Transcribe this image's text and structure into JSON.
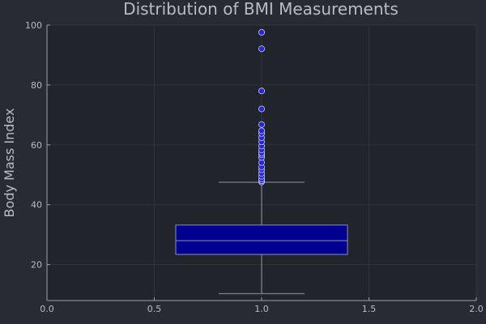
{
  "chart_data": {
    "type": "box",
    "title": "Distribution of BMI Measurements",
    "xlabel": "",
    "ylabel": "Body Mass Index",
    "xlim": [
      0,
      2
    ],
    "ylim": [
      8,
      100
    ],
    "grid": true,
    "x_ticks": [
      0.0,
      0.5,
      1.0,
      1.5,
      2.0
    ],
    "x_tick_labels": [
      "0.0",
      "0.5",
      "1.0",
      "1.5",
      "2.0"
    ],
    "y_ticks": [
      20,
      40,
      60,
      80,
      100
    ],
    "y_tick_labels": [
      "20",
      "40",
      "60",
      "80",
      "100"
    ],
    "box": {
      "x": 1.0,
      "box_left": 0.6,
      "box_right": 1.4,
      "whisker_left": 0.8,
      "whisker_right": 1.2,
      "q1": 23.4,
      "median": 28.0,
      "q3": 33.2,
      "whisker_low": 10.3,
      "whisker_high": 47.5
    },
    "outliers": [
      47.6,
      48.0,
      48.6,
      49.5,
      50.5,
      51.7,
      52.6,
      54.1,
      55.8,
      56.7,
      57.3,
      58.3,
      59.6,
      61.0,
      62.4,
      63.8,
      64.7,
      66.8,
      72.0,
      78.0,
      92.1,
      97.6
    ]
  },
  "colors": {
    "figure_bg": "#282b33",
    "plot_bg": "#21242b",
    "grid": "#31343b",
    "axis": "#9da1a9",
    "text": "#b9bcc4",
    "box_fill": "#000090",
    "box_stroke": "#8b8fb8",
    "whisker": "#7c7f87",
    "outlier_fill": "#2626dc",
    "outlier_stroke": "#c7c9e6"
  }
}
